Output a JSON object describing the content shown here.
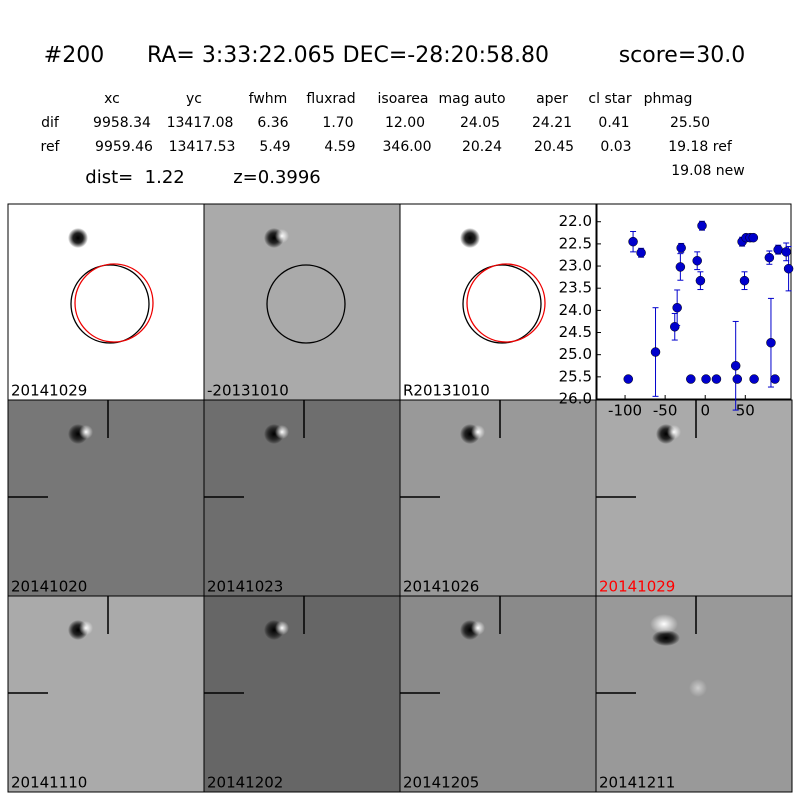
{
  "header": {
    "id": "#200",
    "coords": "RA= 3:33:22.065 DEC=-28:20:58.80",
    "score": "score=30.0"
  },
  "table": {
    "columns": [
      "xc",
      "yc",
      "fwhm",
      "fluxrad",
      "isoarea",
      "mag auto",
      "aper",
      "cl star",
      "phmag"
    ],
    "rows": [
      [
        "dif",
        "9958.34",
        "13417.08",
        "6.36",
        "1.70",
        "12.00",
        "24.05",
        "24.21",
        "0.41",
        "25.50"
      ],
      [
        "ref",
        "9959.46",
        "13417.53",
        "5.49",
        "4.59",
        "346.00",
        "20.24",
        "20.45",
        "0.03",
        "19.18 ref"
      ]
    ],
    "extra": "19.08 new"
  },
  "info": {
    "dist": "dist=  1.22",
    "z": "z=0.3996"
  },
  "stamps": [
    "20141029",
    "-20131010",
    "R20131010",
    "20141020",
    "20141023",
    "20141026",
    "20141029",
    "20141110",
    "20141202",
    "20141205",
    "20141211"
  ],
  "chart_data": {
    "type": "scatter",
    "color": "#0000cc",
    "x": [
      -96,
      -90,
      -80,
      -62,
      -38,
      -35,
      -31,
      -30,
      -18,
      -10,
      -6,
      -4,
      1,
      14,
      38,
      40,
      46,
      49,
      51,
      56,
      60,
      61,
      80,
      82,
      87,
      91,
      101,
      104
    ],
    "values": [
      25.55,
      22.45,
      22.7,
      24.94,
      24.37,
      23.94,
      23.02,
      22.59,
      25.55,
      22.88,
      23.33,
      22.09,
      25.55,
      25.55,
      25.25,
      25.55,
      22.45,
      23.33,
      22.36,
      22.36,
      22.36,
      25.55,
      22.81,
      24.73,
      25.55,
      22.63,
      22.68,
      23.06
    ],
    "errors": [
      0.05,
      0.23,
      0.1,
      1.0,
      0.3,
      0.4,
      0.3,
      0.1,
      0.05,
      0.2,
      0.2,
      0.1,
      0.05,
      0.05,
      1.0,
      0.05,
      0.1,
      0.2,
      0.05,
      0.05,
      0.05,
      0.05,
      0.15,
      1.0,
      0.05,
      0.1,
      0.2,
      0.5
    ],
    "xlim": [
      -135,
      107
    ],
    "ylim": [
      21.6,
      26.0
    ],
    "y_inverted": true,
    "xticks": [
      -100,
      -50,
      0,
      50
    ],
    "yticks": [
      {
        "value": 22,
        "label": "22.0"
      },
      {
        "value": 22.5,
        "label": "22.5"
      },
      {
        "value": 23,
        "label": "23.0"
      },
      {
        "value": 23.5,
        "label": "23.5"
      },
      {
        "value": 24,
        "label": "24.0"
      },
      {
        "value": 24.5,
        "label": "24.5"
      },
      {
        "value": 25,
        "label": "25.0"
      },
      {
        "value": 25.5,
        "label": "25.5"
      },
      {
        "value": 26,
        "label": "26.0"
      }
    ]
  }
}
